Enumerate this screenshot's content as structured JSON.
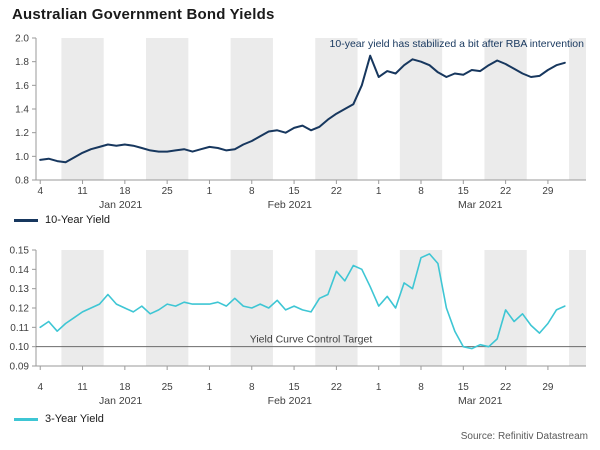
{
  "title": "Australian Government Bond Yields",
  "source": "Source: Refinitiv Datastream",
  "colors": {
    "ten_year": "#17375E",
    "three_year": "#3EC6D4",
    "band": "#EBEBEB",
    "axis": "#9A9A9A",
    "tick_text": "#404040",
    "target_line": "#6B6B6B",
    "annotation_text": "#17375E",
    "source_text": "#595959"
  },
  "chart_data": [
    {
      "type": "line",
      "panel": "10-year-yield",
      "legend": "10-Year Yield",
      "annotation": "10-year yield has stabilized a bit after RBA intervention",
      "ylim": [
        0.8,
        2.0
      ],
      "yticks": [
        [
          0.8,
          "0.8"
        ],
        [
          1.0,
          "1.0"
        ],
        [
          1.2,
          "1.2"
        ],
        [
          1.4,
          "1.4"
        ],
        [
          1.6,
          "1.6"
        ],
        [
          1.8,
          "1.8"
        ],
        [
          2.0,
          "2.0"
        ]
      ],
      "xticks": [
        "4",
        "11",
        "18",
        "25",
        "1",
        "8",
        "15",
        "22",
        "1",
        "8",
        "15",
        "22",
        "29"
      ],
      "months": [
        {
          "label": "Jan 2021",
          "start_week": 0,
          "end_week": 4
        },
        {
          "label": "Feb 2021",
          "start_week": 4,
          "end_week": 8
        },
        {
          "label": "Mar 2021",
          "start_week": 8,
          "end_week": 13
        }
      ],
      "series": [
        {
          "name": "10-Year Yield",
          "color_key": "ten_year",
          "width": 2,
          "values": [
            0.97,
            0.98,
            0.96,
            0.95,
            0.99,
            1.03,
            1.06,
            1.08,
            1.1,
            1.09,
            1.1,
            1.09,
            1.07,
            1.05,
            1.04,
            1.04,
            1.05,
            1.06,
            1.04,
            1.06,
            1.08,
            1.07,
            1.05,
            1.06,
            1.1,
            1.13,
            1.17,
            1.21,
            1.22,
            1.2,
            1.24,
            1.26,
            1.22,
            1.25,
            1.31,
            1.36,
            1.4,
            1.44,
            1.6,
            1.85,
            1.67,
            1.72,
            1.7,
            1.77,
            1.82,
            1.8,
            1.77,
            1.71,
            1.67,
            1.7,
            1.69,
            1.73,
            1.72,
            1.77,
            1.81,
            1.78,
            1.74,
            1.7,
            1.67,
            1.68,
            1.73,
            1.77,
            1.79
          ]
        }
      ]
    },
    {
      "type": "line",
      "panel": "3-year-yield",
      "legend": "3-Year Yield",
      "target": {
        "value": 0.1,
        "label": "Yield Curve Control Target"
      },
      "ylim": [
        0.09,
        0.15
      ],
      "yticks": [
        [
          0.09,
          "0.09"
        ],
        [
          0.1,
          "0.10"
        ],
        [
          0.11,
          "0.11"
        ],
        [
          0.12,
          "0.12"
        ],
        [
          0.13,
          "0.13"
        ],
        [
          0.14,
          "0.14"
        ],
        [
          0.15,
          "0.15"
        ]
      ],
      "xticks": [
        "4",
        "11",
        "18",
        "25",
        "1",
        "8",
        "15",
        "22",
        "1",
        "8",
        "15",
        "22",
        "29"
      ],
      "months": [
        {
          "label": "Jan 2021",
          "start_week": 0,
          "end_week": 4
        },
        {
          "label": "Feb 2021",
          "start_week": 4,
          "end_week": 8
        },
        {
          "label": "Mar 2021",
          "start_week": 8,
          "end_week": 13
        }
      ],
      "series": [
        {
          "name": "3-Year Yield",
          "color_key": "three_year",
          "width": 1.6,
          "values": [
            0.11,
            0.113,
            0.108,
            0.112,
            0.115,
            0.118,
            0.12,
            0.122,
            0.127,
            0.122,
            0.12,
            0.118,
            0.121,
            0.117,
            0.119,
            0.122,
            0.121,
            0.123,
            0.122,
            0.122,
            0.122,
            0.123,
            0.121,
            0.125,
            0.121,
            0.12,
            0.122,
            0.12,
            0.124,
            0.119,
            0.121,
            0.119,
            0.118,
            0.125,
            0.127,
            0.139,
            0.134,
            0.142,
            0.14,
            0.131,
            0.121,
            0.126,
            0.12,
            0.133,
            0.13,
            0.146,
            0.148,
            0.143,
            0.12,
            0.108,
            0.1,
            0.099,
            0.101,
            0.1,
            0.104,
            0.119,
            0.113,
            0.117,
            0.111,
            0.107,
            0.112,
            0.119,
            0.121
          ]
        }
      ]
    }
  ]
}
